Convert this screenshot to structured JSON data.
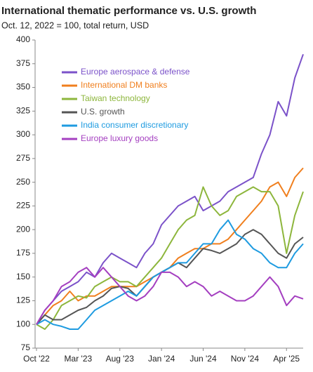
{
  "chart_data": {
    "type": "line",
    "title": "International thematic performance vs. U.S. growth",
    "subtitle": "Oct. 12, 2022 = 100, total return, USD",
    "categories": [
      "Oct '22",
      null,
      null,
      null,
      null,
      "Mar '23",
      null,
      null,
      null,
      null,
      "Aug '23",
      null,
      null,
      null,
      null,
      "Jan '24",
      null,
      null,
      null,
      null,
      "Jun '24",
      null,
      null,
      null,
      null,
      "Nov '24",
      null,
      null,
      null,
      null,
      "Apr '25",
      null,
      null
    ],
    "ylim": [
      75,
      400
    ],
    "yticks": [
      75,
      100,
      125,
      150,
      175,
      200,
      225,
      250,
      275,
      300,
      325,
      350,
      375,
      400
    ],
    "grid": false,
    "legend": "upper-left",
    "series": [
      {
        "name": "Europe aerospace & defense",
        "color": "#7b52c9",
        "values": [
          100,
          115,
          125,
          135,
          140,
          145,
          155,
          150,
          165,
          175,
          170,
          165,
          160,
          175,
          185,
          205,
          215,
          225,
          230,
          235,
          220,
          225,
          230,
          240,
          245,
          250,
          255,
          280,
          300,
          335,
          320,
          360,
          385
        ]
      },
      {
        "name": "International DM banks",
        "color": "#f07f1e",
        "values": [
          100,
          110,
          120,
          125,
          135,
          125,
          130,
          130,
          135,
          140,
          140,
          140,
          140,
          145,
          150,
          155,
          160,
          170,
          175,
          180,
          180,
          185,
          185,
          190,
          200,
          210,
          220,
          230,
          245,
          250,
          235,
          255,
          265
        ]
      },
      {
        "name": "Taiwan technology",
        "color": "#8db63c",
        "values": [
          100,
          95,
          105,
          120,
          125,
          130,
          128,
          140,
          145,
          150,
          145,
          145,
          140,
          150,
          160,
          170,
          185,
          200,
          210,
          215,
          245,
          225,
          215,
          220,
          235,
          240,
          245,
          240,
          240,
          225,
          175,
          215,
          240
        ]
      },
      {
        "name": "U.S. growth",
        "color": "#555555",
        "values": [
          100,
          110,
          105,
          105,
          110,
          115,
          118,
          125,
          130,
          138,
          140,
          138,
          130,
          140,
          150,
          155,
          160,
          165,
          160,
          170,
          180,
          178,
          175,
          180,
          185,
          195,
          200,
          195,
          185,
          175,
          170,
          185,
          192
        ]
      },
      {
        "name": "India consumer discretionary",
        "color": "#1e9be0",
        "values": [
          100,
          105,
          100,
          98,
          95,
          95,
          105,
          115,
          120,
          125,
          130,
          135,
          130,
          140,
          150,
          155,
          160,
          165,
          165,
          175,
          185,
          185,
          200,
          210,
          195,
          190,
          180,
          175,
          165,
          160,
          160,
          175,
          185
        ]
      },
      {
        "name": "Europe luxury goods",
        "color": "#a43fc0",
        "values": [
          100,
          115,
          125,
          140,
          145,
          155,
          160,
          150,
          160,
          150,
          140,
          130,
          125,
          130,
          140,
          155,
          155,
          150,
          140,
          145,
          140,
          130,
          135,
          130,
          125,
          125,
          130,
          140,
          150,
          140,
          120,
          130,
          127
        ]
      }
    ]
  }
}
